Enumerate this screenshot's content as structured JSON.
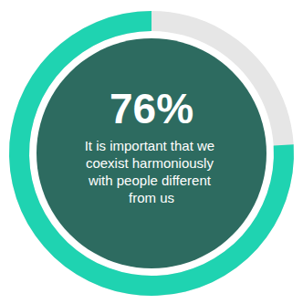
{
  "chart_data": {
    "type": "donut",
    "values": [
      76
    ],
    "value_labels": [
      "76%"
    ],
    "ylim": [
      0,
      100
    ],
    "color": "#1fd3b1",
    "data_labels": true,
    "tick_labels": false,
    "annotation": "It is important that we coexist harmoniously with people different from us"
  }
}
